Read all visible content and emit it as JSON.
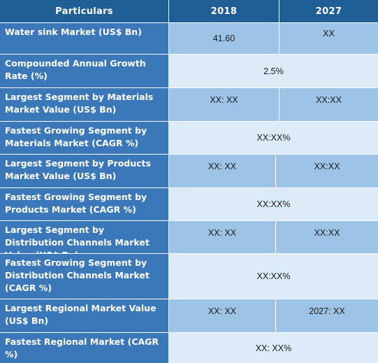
{
  "header": {
    "col1": "Particulars",
    "col2": "2018",
    "col3": "2027"
  },
  "rows": [
    {
      "label": "Water sink Market (US$ Bn)",
      "v2018": "41.60",
      "v2027": "XX"
    },
    {
      "label": "Compounded Annual Growth Rate (%)",
      "merged": "2.5%"
    },
    {
      "label": "Largest Segment by Materials Market Value (US$ Bn)",
      "v2018": "XX: XX",
      "v2027": "XX:XX"
    },
    {
      "label": "Fastest Growing Segment by Materials Market (CAGR %)",
      "merged": "XX:XX%"
    },
    {
      "label": "Largest Segment by Products Market Value (US$ Bn)",
      "v2018": "XX: XX",
      "v2027": "XX:XX"
    },
    {
      "label": "Fastest Growing Segment by Products Market (CAGR %)",
      "merged": "XX:XX%"
    },
    {
      "label": "Largest Segment by Distribution Channels Market Value (US$ Bn)",
      "v2018": "XX: XX",
      "v2027": "XX:XX"
    },
    {
      "label": "Fastest Growing Segment by Distribution Channels Market (CAGR %)",
      "merged": "XX:XX%"
    },
    {
      "label": "Largest Regional Market Value (US$ Bn)",
      "v2018": "XX: XX",
      "v2027": "2027: XX"
    },
    {
      "label": "Fastest Regional Market (CAGR %)",
      "merged": "XX: XX%"
    }
  ]
}
